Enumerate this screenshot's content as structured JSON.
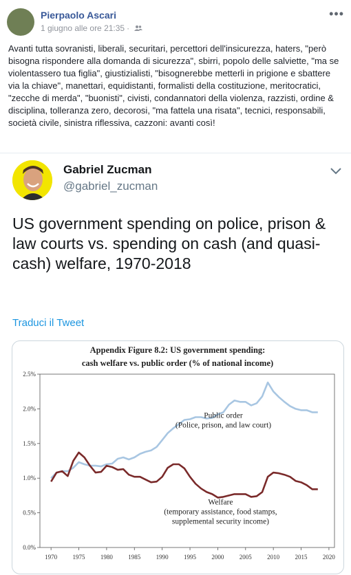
{
  "post": {
    "author": "Pierpaolo Ascari",
    "date": "1 giugno alle ore 21:35",
    "separator": "·",
    "text": "Avanti tutta sovranisti, liberali, securitari, percettori dell'insicurezza, haters, \"però bisogna rispondere alla domanda di sicurezza\", sbirri, popolo delle salviette, \"ma se violentassero tua figlia\", giustizialisti, \"bisognerebbe metterli in prigione e sbattere via la chiave\", manettari, equidistanti, formalisti della costituzione, meritocratici, \"zecche di merda\", \"buonisti\", civisti, condannatori della violenza, razzisti, ordine & disciplina, tolleranza zero, decorosi, \"ma fattela una risata\", tecnici, responsabili, società civile, sinistra riflessiva, cazzoni: avanti così!"
  },
  "tweet": {
    "name": "Gabriel Zucman",
    "handle": "@gabriel_zucman",
    "text": "US government spending on police, prison & law courts vs. spending on cash (and quasi-cash) welfare, 1970-2018",
    "translate": "Traduci il Tweet"
  },
  "colors": {
    "link": "#385898",
    "tweet_link": "#1b95e0",
    "public_order_line": "#a8c6e2",
    "welfare_line": "#7a2a2a"
  },
  "chart_data": {
    "type": "line",
    "title": "Appendix Figure 8.2: US government spending:",
    "subtitle": "cash welfare vs. public order (% of national income)",
    "xlabel": "",
    "ylabel": "",
    "xlim": [
      1968,
      2021
    ],
    "ylim": [
      0,
      2.5
    ],
    "x_ticks": [
      1970,
      1975,
      1980,
      1985,
      1990,
      1995,
      2000,
      2005,
      2010,
      2015,
      2020
    ],
    "y_ticks": [
      "0.0%",
      "0.5%",
      "1.0%",
      "1.5%",
      "2.0%",
      "2.5%"
    ],
    "y_tick_values": [
      0,
      0.5,
      1.0,
      1.5,
      2.0,
      2.5
    ],
    "grid": false,
    "series": [
      {
        "name": "Public order",
        "annotation": [
          "Public order",
          "(Police, prison, and law court)"
        ],
        "x": [
          1970,
          1971,
          1972,
          1973,
          1974,
          1975,
          1976,
          1977,
          1978,
          1979,
          1980,
          1981,
          1982,
          1983,
          1984,
          1985,
          1986,
          1987,
          1988,
          1989,
          1990,
          1991,
          1992,
          1993,
          1994,
          1995,
          1996,
          1997,
          1998,
          1999,
          2000,
          2001,
          2002,
          2003,
          2004,
          2005,
          2006,
          2007,
          2008,
          2009,
          2010,
          2011,
          2012,
          2013,
          2014,
          2015,
          2016,
          2017,
          2018
        ],
        "values": [
          1.0,
          1.08,
          1.1,
          1.1,
          1.15,
          1.23,
          1.2,
          1.18,
          1.18,
          1.17,
          1.2,
          1.21,
          1.28,
          1.3,
          1.27,
          1.3,
          1.35,
          1.38,
          1.4,
          1.45,
          1.55,
          1.65,
          1.72,
          1.78,
          1.84,
          1.85,
          1.88,
          1.88,
          1.86,
          1.87,
          1.92,
          1.95,
          2.06,
          2.12,
          2.1,
          2.1,
          2.05,
          2.08,
          2.18,
          2.38,
          2.25,
          2.17,
          2.1,
          2.04,
          2.0,
          1.98,
          1.98,
          1.95,
          1.95
        ]
      },
      {
        "name": "Welfare",
        "annotation": [
          "Welfare",
          "(temporary assistance, food stamps,",
          "supplemental security income)"
        ],
        "x": [
          1970,
          1971,
          1972,
          1973,
          1974,
          1975,
          1976,
          1977,
          1978,
          1979,
          1980,
          1981,
          1982,
          1983,
          1984,
          1985,
          1986,
          1987,
          1988,
          1989,
          1990,
          1991,
          1992,
          1993,
          1994,
          1995,
          1996,
          1997,
          1998,
          1999,
          2000,
          2001,
          2002,
          2003,
          2004,
          2005,
          2006,
          2007,
          2008,
          2009,
          2010,
          2011,
          2012,
          2013,
          2014,
          2015,
          2016,
          2017,
          2018
        ],
        "values": [
          0.95,
          1.08,
          1.1,
          1.03,
          1.25,
          1.37,
          1.3,
          1.18,
          1.08,
          1.09,
          1.18,
          1.16,
          1.12,
          1.13,
          1.05,
          1.02,
          1.02,
          0.98,
          0.94,
          0.95,
          1.02,
          1.15,
          1.2,
          1.2,
          1.14,
          1.02,
          0.92,
          0.85,
          0.8,
          0.77,
          0.72,
          0.73,
          0.75,
          0.77,
          0.77,
          0.77,
          0.73,
          0.74,
          0.8,
          1.02,
          1.08,
          1.07,
          1.05,
          1.02,
          0.96,
          0.94,
          0.9,
          0.84,
          0.84
        ]
      }
    ]
  }
}
